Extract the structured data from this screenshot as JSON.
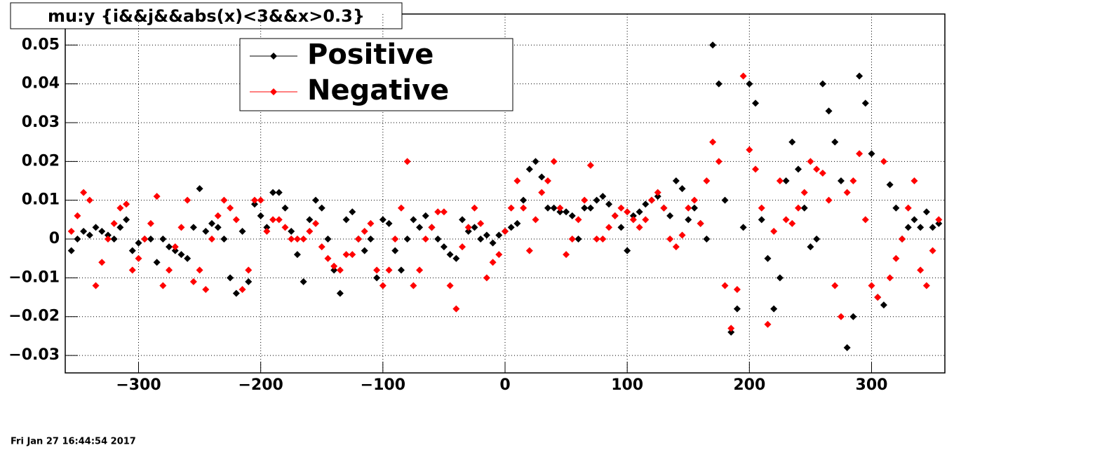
{
  "chart_data": {
    "type": "scatter",
    "title": "mu:y {i&&j&&abs(x)<3&&x>0.3}",
    "timestamp": "Fri Jan 27 16:44:54 2017",
    "x": [
      -355,
      -350,
      -345,
      -340,
      -335,
      -330,
      -325,
      -320,
      -315,
      -310,
      -305,
      -300,
      -295,
      -290,
      -285,
      -280,
      -275,
      -270,
      -265,
      -260,
      -255,
      -250,
      -245,
      -240,
      -235,
      -230,
      -225,
      -220,
      -215,
      -210,
      -205,
      -200,
      -195,
      -190,
      -185,
      -180,
      -175,
      -170,
      -165,
      -160,
      -155,
      -150,
      -145,
      -140,
      -135,
      -130,
      -125,
      -120,
      -115,
      -110,
      -105,
      -100,
      -95,
      -90,
      -85,
      -80,
      -75,
      -70,
      -65,
      -60,
      -55,
      -50,
      -45,
      -40,
      -35,
      -30,
      -25,
      -20,
      -15,
      -10,
      -5,
      0,
      5,
      10,
      15,
      20,
      25,
      30,
      35,
      40,
      45,
      50,
      55,
      60,
      65,
      70,
      75,
      80,
      85,
      90,
      95,
      100,
      105,
      110,
      115,
      120,
      125,
      130,
      135,
      140,
      145,
      150,
      155,
      160,
      165,
      170,
      175,
      180,
      185,
      190,
      195,
      200,
      205,
      210,
      215,
      220,
      225,
      230,
      235,
      240,
      245,
      250,
      255,
      260,
      265,
      270,
      275,
      280,
      285,
      290,
      295,
      300,
      305,
      310,
      315,
      320,
      325,
      330,
      335,
      340,
      345,
      350,
      355
    ],
    "series": [
      {
        "name": "Positive",
        "color": "#000000",
        "values": [
          -0.003,
          0.0,
          0.002,
          0.001,
          0.003,
          0.002,
          0.001,
          0.0,
          0.003,
          0.005,
          -0.003,
          -0.001,
          0.0,
          0.0,
          -0.006,
          0.0,
          -0.002,
          -0.003,
          -0.004,
          -0.005,
          0.003,
          0.013,
          0.002,
          0.004,
          0.003,
          0.0,
          -0.01,
          -0.014,
          0.002,
          -0.011,
          0.009,
          0.006,
          0.003,
          0.012,
          0.012,
          0.008,
          0.002,
          -0.004,
          -0.011,
          0.005,
          0.01,
          0.008,
          0.0,
          -0.008,
          -0.014,
          0.005,
          0.007,
          0.0,
          -0.003,
          0.0,
          -0.01,
          0.005,
          0.004,
          -0.003,
          -0.008,
          0.0,
          0.005,
          0.003,
          0.006,
          0.003,
          0.0,
          -0.002,
          -0.004,
          -0.005,
          0.005,
          0.002,
          0.003,
          0.0,
          0.001,
          -0.001,
          0.001,
          0.002,
          0.003,
          0.004,
          0.01,
          0.018,
          0.02,
          0.016,
          0.008,
          0.008,
          0.007,
          0.007,
          0.006,
          0.0,
          0.008,
          0.008,
          0.01,
          0.011,
          0.009,
          0.006,
          0.003,
          -0.003,
          0.006,
          0.007,
          0.009,
          0.01,
          0.011,
          0.008,
          0.006,
          0.015,
          0.013,
          0.005,
          0.008,
          0.004,
          0.0,
          0.05,
          0.04,
          0.01,
          -0.024,
          -0.018,
          0.003,
          0.04,
          0.035,
          0.005,
          -0.005,
          -0.018,
          -0.01,
          0.015,
          0.025,
          0.018,
          0.008,
          -0.002,
          0.0,
          0.04,
          0.033,
          0.025,
          0.015,
          -0.028,
          -0.02,
          0.042,
          0.035,
          0.022,
          -0.015,
          -0.017,
          0.014,
          0.008,
          0.0,
          0.003,
          0.005,
          0.003,
          0.007,
          0.003,
          0.004
        ]
      },
      {
        "name": "Negative",
        "color": "#ff0000",
        "values": [
          0.002,
          0.006,
          0.012,
          0.01,
          -0.012,
          -0.006,
          0.0,
          0.004,
          0.008,
          0.009,
          -0.008,
          -0.005,
          0.0,
          0.004,
          0.011,
          -0.012,
          -0.008,
          -0.002,
          0.003,
          0.01,
          -0.011,
          -0.008,
          -0.013,
          0.0,
          0.006,
          0.01,
          0.008,
          0.005,
          -0.013,
          -0.008,
          0.01,
          0.01,
          0.002,
          0.005,
          0.005,
          0.003,
          0.0,
          0.0,
          0.0,
          0.002,
          0.004,
          -0.002,
          -0.005,
          -0.007,
          -0.008,
          -0.004,
          -0.004,
          0.0,
          0.002,
          0.004,
          -0.008,
          -0.012,
          -0.008,
          0.0,
          0.008,
          0.02,
          -0.012,
          -0.008,
          0.0,
          0.003,
          0.007,
          0.007,
          -0.012,
          -0.018,
          -0.002,
          0.003,
          0.008,
          0.004,
          -0.01,
          -0.006,
          -0.004,
          0.002,
          0.008,
          0.015,
          0.008,
          -0.003,
          0.005,
          0.012,
          0.015,
          0.02,
          0.008,
          -0.004,
          0.0,
          0.005,
          0.01,
          0.019,
          0.0,
          0.0,
          0.003,
          0.006,
          0.008,
          0.007,
          0.005,
          0.003,
          0.005,
          0.01,
          0.012,
          0.008,
          0.0,
          -0.002,
          0.001,
          0.008,
          0.01,
          0.004,
          0.015,
          0.025,
          0.02,
          -0.012,
          -0.023,
          -0.013,
          0.042,
          0.023,
          0.018,
          0.008,
          -0.022,
          0.002,
          0.015,
          0.005,
          0.004,
          0.008,
          0.012,
          0.02,
          0.018,
          0.017,
          0.01,
          -0.012,
          -0.02,
          0.012,
          0.015,
          0.022,
          0.005,
          -0.012,
          -0.015,
          0.02,
          -0.01,
          -0.005,
          0.0,
          0.008,
          0.015,
          -0.008,
          -0.012,
          -0.003,
          0.005
        ]
      }
    ],
    "xlim": [
      -360,
      360
    ],
    "xticks": [
      {
        "value": -300,
        "label": "−300"
      },
      {
        "value": -200,
        "label": "−200"
      },
      {
        "value": -100,
        "label": "−100"
      },
      0,
      100,
      200,
      300
    ],
    "ylim": [
      -0.0345,
      0.058
    ],
    "yticks": [
      {
        "value": -0.03,
        "label": "−0.03"
      },
      {
        "value": -0.02,
        "label": "−0.02"
      },
      {
        "value": -0.01,
        "label": "−0.01"
      },
      0,
      0.01,
      0.02,
      0.03,
      0.04,
      0.05
    ],
    "grid": true,
    "legend": "top-left"
  }
}
